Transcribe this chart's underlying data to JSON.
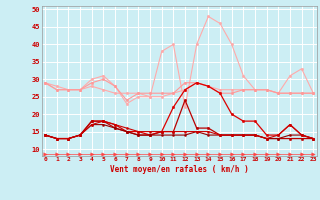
{
  "x": [
    0,
    1,
    2,
    3,
    4,
    5,
    6,
    7,
    8,
    9,
    10,
    11,
    12,
    13,
    14,
    15,
    16,
    17,
    18,
    19,
    20,
    21,
    22,
    23
  ],
  "series": [
    {
      "name": "rafales_top",
      "color": "#ffaaaa",
      "lw": 0.8,
      "marker": "o",
      "ms": 1.8,
      "values": [
        29,
        28,
        27,
        27,
        30,
        31,
        28,
        23,
        25,
        25,
        38,
        40,
        22,
        40,
        48,
        46,
        40,
        31,
        27,
        27,
        26,
        31,
        33,
        26
      ]
    },
    {
      "name": "moy_light1",
      "color": "#ffaaaa",
      "lw": 0.8,
      "marker": "o",
      "ms": 1.8,
      "values": [
        29,
        27,
        27,
        27,
        28,
        27,
        26,
        26,
        26,
        25,
        25,
        26,
        27,
        29,
        28,
        27,
        27,
        27,
        27,
        27,
        26,
        26,
        26,
        26
      ]
    },
    {
      "name": "rafales_mid",
      "color": "#ff9999",
      "lw": 0.8,
      "marker": "o",
      "ms": 1.8,
      "values": [
        29,
        27,
        27,
        27,
        29,
        30,
        28,
        24,
        26,
        26,
        26,
        26,
        29,
        29,
        28,
        26,
        26,
        27,
        27,
        27,
        26,
        26,
        26,
        26
      ]
    },
    {
      "name": "moy_dark1",
      "color": "#dd0000",
      "lw": 0.9,
      "marker": "o",
      "ms": 1.8,
      "values": [
        14,
        13,
        13,
        14,
        18,
        18,
        17,
        15,
        15,
        14,
        15,
        22,
        27,
        29,
        28,
        26,
        20,
        18,
        18,
        14,
        14,
        17,
        14,
        13
      ]
    },
    {
      "name": "moy_dark2",
      "color": "#bb0000",
      "lw": 0.9,
      "marker": "o",
      "ms": 1.8,
      "values": [
        14,
        13,
        13,
        14,
        18,
        18,
        16,
        15,
        14,
        14,
        15,
        15,
        24,
        16,
        16,
        14,
        14,
        14,
        14,
        13,
        13,
        13,
        13,
        13
      ]
    },
    {
      "name": "moy_dark3",
      "color": "#990000",
      "lw": 0.8,
      "marker": "o",
      "ms": 1.5,
      "values": [
        14,
        13,
        13,
        14,
        17,
        17,
        16,
        15,
        14,
        14,
        14,
        14,
        14,
        15,
        14,
        14,
        14,
        14,
        14,
        13,
        13,
        14,
        14,
        13
      ]
    },
    {
      "name": "moy_dark4",
      "color": "#cc0000",
      "lw": 0.8,
      "marker": "o",
      "ms": 1.5,
      "values": [
        14,
        13,
        13,
        14,
        17,
        18,
        17,
        16,
        15,
        15,
        15,
        15,
        15,
        15,
        15,
        14,
        14,
        14,
        14,
        13,
        14,
        17,
        14,
        13
      ]
    },
    {
      "name": "wind_arrows",
      "color": "#ff4444",
      "lw": 0.5,
      "marker": ">",
      "ms": 2.5,
      "values": [
        8.5,
        8.5,
        8.5,
        8.5,
        8.5,
        8.5,
        8.5,
        8.5,
        8.5,
        8.5,
        8.5,
        8.5,
        8.5,
        8.5,
        8.5,
        8.5,
        8.5,
        8.5,
        8.5,
        8.5,
        8.5,
        8.5,
        8.5,
        8.5
      ]
    }
  ],
  "xlim": [
    -0.3,
    23.3
  ],
  "ylim": [
    8,
    51
  ],
  "yticks": [
    10,
    15,
    20,
    25,
    30,
    35,
    40,
    45,
    50
  ],
  "xticks": [
    0,
    1,
    2,
    3,
    4,
    5,
    6,
    7,
    8,
    9,
    10,
    11,
    12,
    13,
    14,
    15,
    16,
    17,
    18,
    19,
    20,
    21,
    22,
    23
  ],
  "xlabel": "Vent moyen/en rafales ( km/h )",
  "bg_color": "#cceef4",
  "grid_color": "#ffffff"
}
